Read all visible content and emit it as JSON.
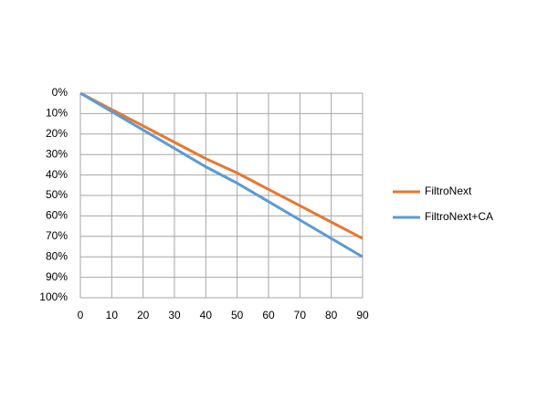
{
  "chart_data": {
    "type": "line",
    "x": [
      0,
      10,
      20,
      30,
      40,
      50,
      60,
      70,
      80,
      90
    ],
    "series": [
      {
        "name": "FiltroNext",
        "color": "#e8772e",
        "values": [
          0,
          8,
          16,
          24,
          32,
          39,
          47,
          55,
          63,
          71
        ]
      },
      {
        "name": "FiltroNext+CA",
        "color": "#5b9bd5",
        "values": [
          0,
          9,
          18,
          27,
          36,
          44,
          53,
          62,
          71,
          80
        ]
      }
    ],
    "xlim": [
      0,
      90
    ],
    "xticks": [
      0,
      10,
      20,
      30,
      40,
      50,
      60,
      70,
      80,
      90
    ],
    "ylim": [
      100,
      0
    ],
    "yticks": [
      {
        "value": 0,
        "label": "0%"
      },
      {
        "value": 10,
        "label": "10%"
      },
      {
        "value": 20,
        "label": "20%"
      },
      {
        "value": 30,
        "label": "30%"
      },
      {
        "value": 40,
        "label": "40%"
      },
      {
        "value": 50,
        "label": "50%"
      },
      {
        "value": 60,
        "label": "60%"
      },
      {
        "value": 70,
        "label": "70%"
      },
      {
        "value": 80,
        "label": "80%"
      },
      {
        "value": 90,
        "label": "90%"
      },
      {
        "value": 100,
        "label": "100%"
      }
    ],
    "grid": true,
    "legend": "right"
  }
}
